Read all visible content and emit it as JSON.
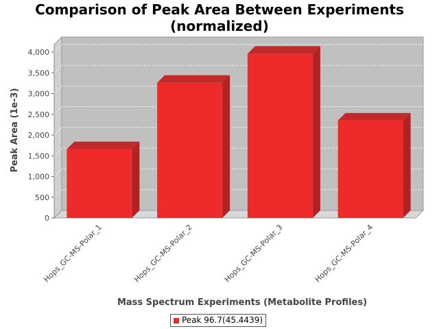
{
  "chart_data": {
    "type": "bar",
    "title_line1": "Comparison of Peak Area Between Experiments",
    "title_line2": "(normalized)",
    "xlabel": "Mass Spectrum Experiments (Metabolite Profiles)",
    "ylabel": "Peak Area (1e-3)",
    "categories": [
      "Hops_GC-MS-Polar_1",
      "Hops_GC-MS-Polar_2",
      "Hops_GC-MS-Polar_3",
      "Hops_GC-MS-Polar_4"
    ],
    "series": [
      {
        "name": "Peak 96.7(45.4439)",
        "values": [
          1660,
          3260,
          3960,
          2350
        ],
        "color": "#ee2a2a"
      }
    ],
    "ylim": [
      0,
      4000
    ],
    "yticks": [
      "0",
      "500",
      "1,000",
      "1,500",
      "2,000",
      "2,500",
      "3,000",
      "3,500",
      "4,000"
    ],
    "grid": true,
    "legend_position": "bottom",
    "three_d": true,
    "plot_background": "#c0c0c0"
  }
}
